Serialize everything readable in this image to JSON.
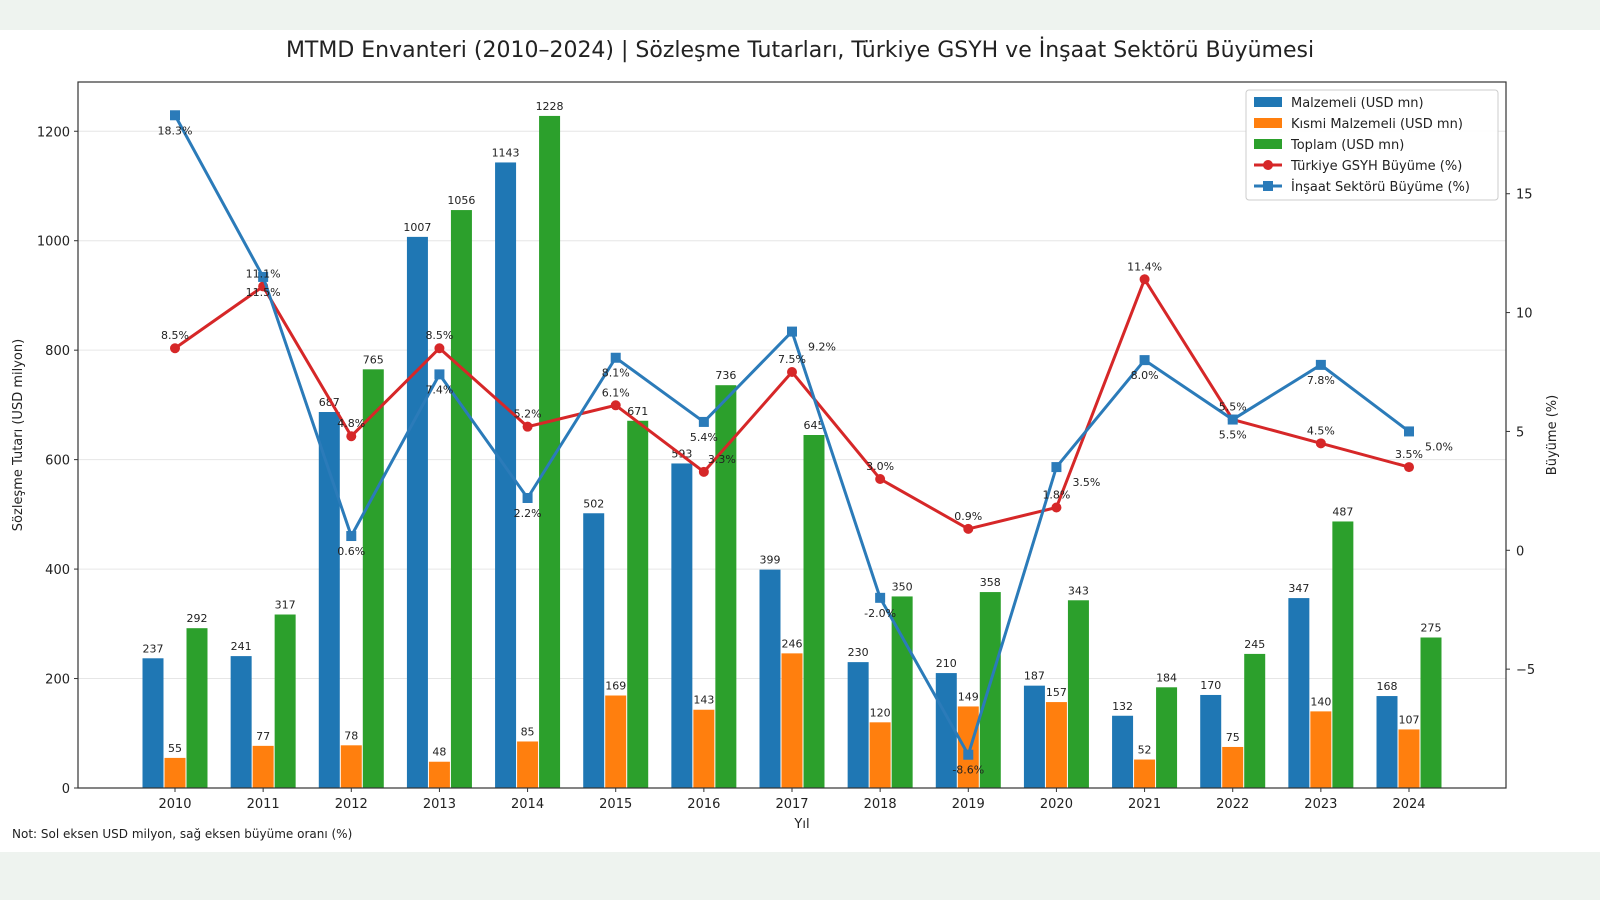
{
  "chart_data": {
    "type": "bar",
    "title": "MTMD Envanteri (2010–2024) | Sözleşme Tutarları, Türkiye GSYH ve İnşaat Sektörü Büyümesi",
    "xlabel": "Yıl",
    "ylabel": "Sözleşme Tutarı (USD milyon)",
    "y2label": "Büyüme (%)",
    "ylim": [
      0,
      1290
    ],
    "y2lim": [
      -10,
      19.7
    ],
    "yticks": [
      0,
      200,
      400,
      600,
      800,
      1000,
      1200
    ],
    "y2ticks": [
      -5,
      0,
      5,
      10,
      15
    ],
    "grid": true,
    "legend_position": "top-right",
    "categories": [
      "2010",
      "2011",
      "2012",
      "2013",
      "2014",
      "2015",
      "2016",
      "2017",
      "2018",
      "2019",
      "2020",
      "2021",
      "2022",
      "2023",
      "2024"
    ],
    "series": [
      {
        "name": "Malzemeli (USD mn)",
        "type": "bar",
        "axis": "left",
        "color": "#1f77b4",
        "values": [
          237,
          241,
          687,
          1007,
          1143,
          502,
          593,
          399,
          230,
          210,
          187,
          132,
          170,
          347,
          168
        ]
      },
      {
        "name": "Kısmi Malzemeli (USD mn)",
        "type": "bar",
        "axis": "left",
        "color": "#ff7f0e",
        "values": [
          55,
          77,
          78,
          48,
          85,
          169,
          143,
          246,
          120,
          149,
          157,
          52,
          75,
          140,
          107
        ]
      },
      {
        "name": "Toplam (USD mn)",
        "type": "bar",
        "axis": "left",
        "color": "#2ca02c",
        "values": [
          292,
          317,
          765,
          1056,
          1228,
          671,
          736,
          645,
          350,
          358,
          343,
          184,
          245,
          487,
          275
        ]
      },
      {
        "name": "Türkiye GSYH Büyüme (%)",
        "type": "line",
        "marker": "circle",
        "axis": "right",
        "color": "#d62728",
        "values": [
          8.5,
          11.1,
          4.8,
          8.5,
          5.2,
          6.1,
          3.3,
          7.5,
          3.0,
          0.9,
          1.8,
          11.4,
          5.5,
          4.5,
          3.5
        ]
      },
      {
        "name": "İnşaat Sektörü Büyüme (%)",
        "type": "line",
        "marker": "square",
        "axis": "right",
        "color": "#2b7bb9",
        "values": [
          18.3,
          11.5,
          0.6,
          7.4,
          2.2,
          8.1,
          5.4,
          9.2,
          -2.0,
          -8.6,
          3.5,
          8.0,
          5.5,
          7.8,
          5.0
        ]
      }
    ]
  },
  "note": "Not: Sol eksen USD milyon, sağ eksen büyüme oranı (%)"
}
